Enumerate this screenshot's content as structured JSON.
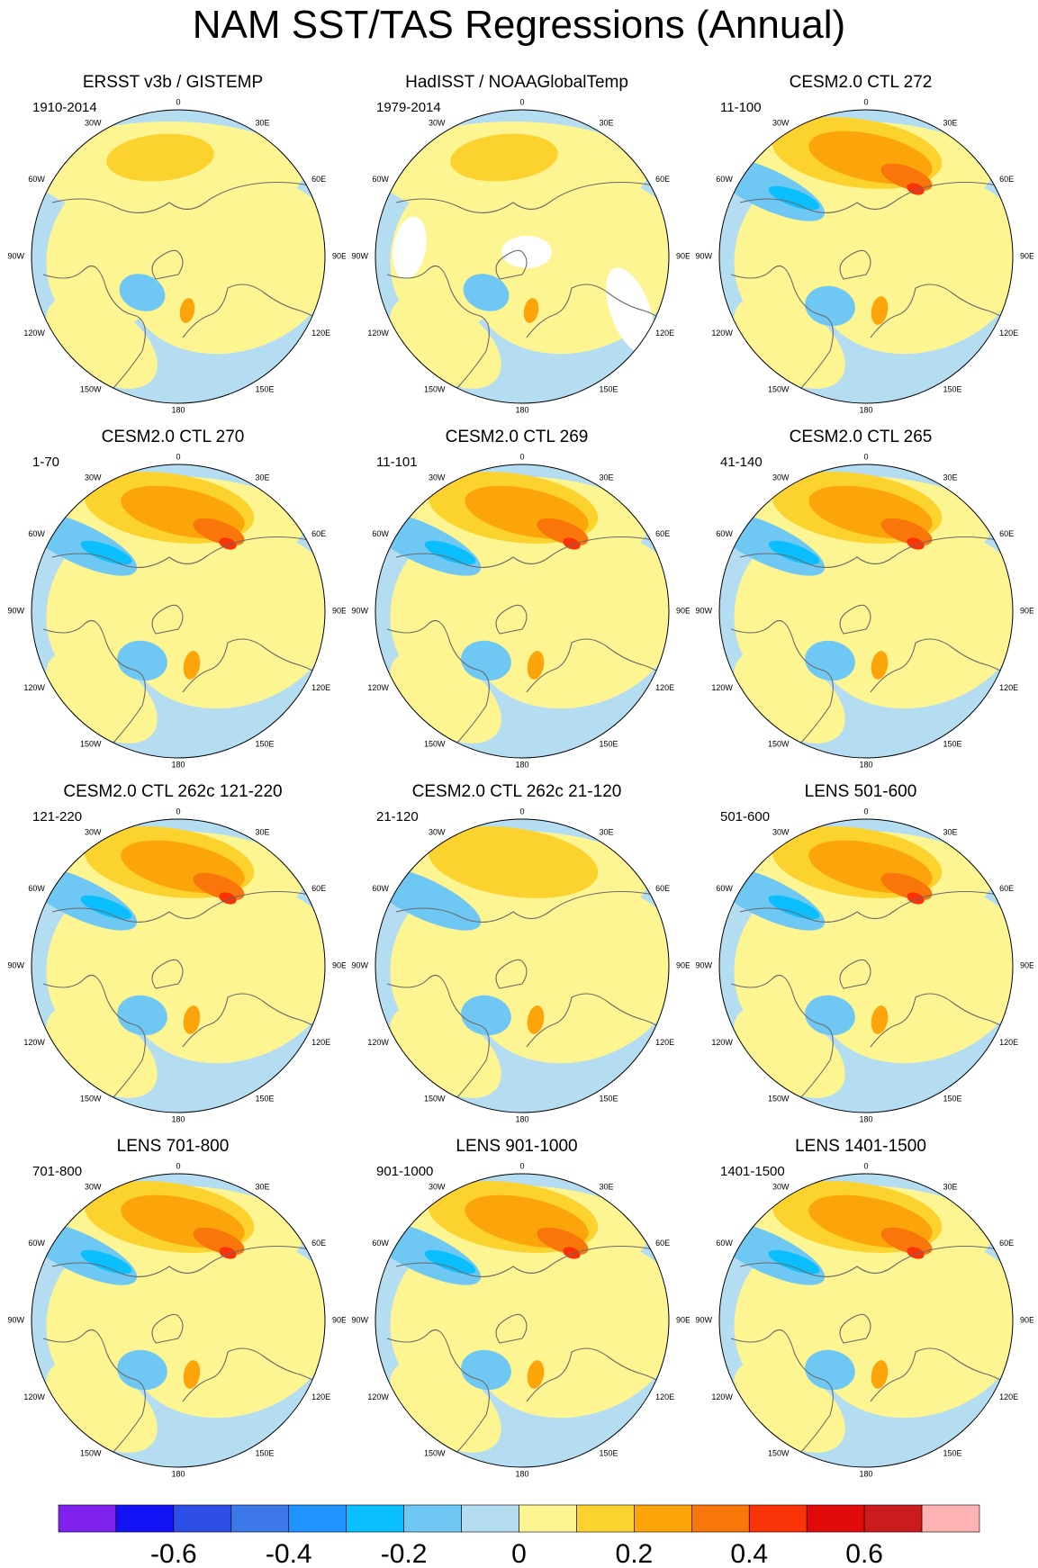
{
  "title": "NAM SST/TAS Regressions (Annual)",
  "panels": [
    {
      "title": "ERSST v3b / GISTEMP",
      "range": "1910-2014",
      "pattern": "obs",
      "gaps": false
    },
    {
      "title": "HadISST / NOAAGlobalTemp",
      "range": "1979-2014",
      "pattern": "obs",
      "gaps": true
    },
    {
      "title": "CESM2.0 CTL 272",
      "range": "11-100",
      "pattern": "model",
      "gaps": false
    },
    {
      "title": "CESM2.0 CTL 270",
      "range": "1-70",
      "pattern": "model",
      "gaps": false
    },
    {
      "title": "CESM2.0 CTL 269",
      "range": "11-101",
      "pattern": "model",
      "gaps": false
    },
    {
      "title": "CESM2.0 CTL 265",
      "range": "41-140",
      "pattern": "model",
      "gaps": false
    },
    {
      "title": "CESM2.0 CTL 262c 121-220",
      "range": "121-220",
      "pattern": "model",
      "gaps": false
    },
    {
      "title": "CESM2.0 CTL 262c 21-120",
      "range": "21-120",
      "pattern": "weak",
      "gaps": false
    },
    {
      "title": "LENS 501-600",
      "range": "501-600",
      "pattern": "model",
      "gaps": false
    },
    {
      "title": "LENS 701-800",
      "range": "701-800",
      "pattern": "model",
      "gaps": false
    },
    {
      "title": "LENS 901-1000",
      "range": "901-1000",
      "pattern": "model",
      "gaps": false
    },
    {
      "title": "LENS 1401-1500",
      "range": "1401-1500",
      "pattern": "model",
      "gaps": false
    }
  ],
  "longitude_labels": [
    "180",
    "150E",
    "120E",
    "90E",
    "60E",
    "30E",
    "0",
    "30W",
    "60W",
    "90W",
    "120W",
    "150W"
  ],
  "colorbar": {
    "colors": [
      "#7f22ee",
      "#1313f5",
      "#2d4fe6",
      "#3d78e8",
      "#1f93ff",
      "#0bbfff",
      "#6ec8f3",
      "#b4ddf2",
      "#fdf592",
      "#fcd22f",
      "#fba50b",
      "#f8760a",
      "#fa3408",
      "#e10a0a",
      "#cb1c1d",
      "#fdb2b4"
    ],
    "tick_labels": [
      "-0.6",
      "-0.4",
      "-0.2",
      "0",
      "0.2",
      "0.4",
      "0.6"
    ]
  },
  "palette": {
    "pos1": "#fdf592",
    "pos2": "#fcd22f",
    "pos3": "#fba50b",
    "pos4": "#f8760a",
    "pos5": "#fa3408",
    "pos6": "#e10a0a",
    "neg1": "#b4ddf2",
    "neg2": "#6ec8f3",
    "neg3": "#0bbfff",
    "neg4": "#1f93ff",
    "coast": "#6a6a6a"
  }
}
